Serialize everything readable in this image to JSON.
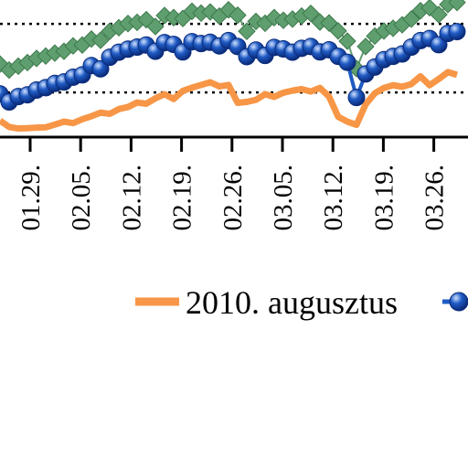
{
  "chart_data": {
    "type": "line",
    "title": "",
    "xlabel": "",
    "ylabel": "",
    "x_tick_labels": [
      "01.29.",
      "02.05.",
      "02.12.",
      "02.19.",
      "02.26.",
      "03.05.",
      "03.12.",
      "03.19.",
      "03.26."
    ],
    "grid": "dotted horizontal reference lines",
    "legend_position": "bottom",
    "series": [
      {
        "name": "2010. augusztus",
        "color": "#f79646",
        "marker": "none",
        "values": [
          0.55,
          0.34,
          0.29,
          0.3,
          0.32,
          0.33,
          0.42,
          0.52,
          0.47,
          0.6,
          0.7,
          0.82,
          0.78,
          0.94,
          1.01,
          1.16,
          1.12,
          1.3,
          1.44,
          1.28,
          1.55,
          1.66,
          1.75,
          1.84,
          1.7,
          1.75,
          1.15,
          1.18,
          1.25,
          1.44,
          1.35,
          1.49,
          1.56,
          1.61,
          1.53,
          1.65,
          1.36,
          0.68,
          0.52,
          0.41,
          1.1,
          1.47,
          1.65,
          1.74,
          1.69,
          1.78,
          2.04,
          1.74,
          1.95,
          2.18,
          2.09
        ]
      },
      {
        "name": "",
        "color": "#1f5bc4",
        "marker": "sphere",
        "values": [
          1.45,
          1.18,
          1.36,
          1.42,
          1.58,
          1.66,
          1.8,
          1.85,
          2.01,
          2.09,
          2.4,
          2.29,
          2.68,
          2.85,
          2.95,
          3.02,
          3.09,
          2.88,
          3.17,
          3.11,
          2.86,
          3.2,
          3.14,
          3.18,
          3.06,
          3.24,
          3.04,
          2.7,
          2.92,
          2.74,
          3.01,
          2.96,
          2.85,
          2.98,
          3.04,
          2.86,
          2.93,
          2.71,
          2.51,
          1.33,
          2.12,
          2.35,
          2.6,
          2.71,
          2.79,
          3.02,
          3.24,
          3.31,
          3.1,
          3.48,
          3.54
        ]
      },
      {
        "name": "",
        "color": "#5f9e6e",
        "marker": "diamond",
        "values": [
          2.45,
          2.25,
          2.38,
          2.5,
          2.64,
          2.72,
          2.82,
          2.88,
          3.06,
          3.09,
          3.29,
          3.25,
          3.55,
          3.67,
          3.81,
          3.85,
          3.94,
          3.71,
          4.08,
          4.01,
          3.98,
          4.22,
          4.16,
          4.2,
          4.06,
          4.27,
          4.09,
          3.55,
          3.88,
          3.82,
          4.01,
          3.92,
          3.96,
          4.06,
          4.15,
          3.86,
          3.83,
          3.56,
          3.22,
          2.3,
          3.04,
          3.39,
          3.56,
          3.65,
          3.77,
          3.96,
          4.24,
          4.34,
          4.11,
          4.45,
          4.52
        ]
      }
    ],
    "reference_lines": [
      1.5,
      3.8
    ],
    "ylim": [
      0,
      4.6
    ]
  }
}
